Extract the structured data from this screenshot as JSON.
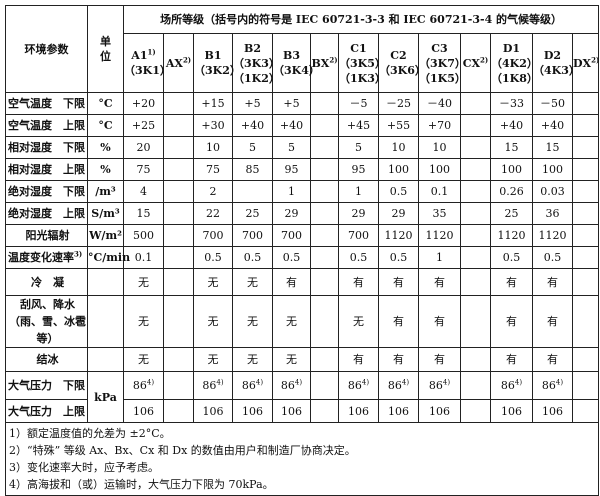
{
  "header": {
    "param_label": "环境参数",
    "unit_label": "单位",
    "group_title": "场所等级（括号内的符号是 IEC 60721-3-3 和 IEC 60721-3-4 的气候等级）",
    "classes": [
      {
        "name": "A1",
        "sup": "1)",
        "codes": [
          "（3K1）"
        ]
      },
      {
        "name": "AX",
        "sup": "2)",
        "codes": []
      },
      {
        "name": "B1",
        "sup": "",
        "codes": [
          "（3K2）"
        ]
      },
      {
        "name": "B2",
        "sup": "",
        "codes": [
          "（3K3）",
          "（1K2）"
        ]
      },
      {
        "name": "B3",
        "sup": "",
        "codes": [
          "（3K4）"
        ]
      },
      {
        "name": "BX",
        "sup": "2)",
        "codes": []
      },
      {
        "name": "C1",
        "sup": "",
        "codes": [
          "（3K5）",
          "（1K3）"
        ]
      },
      {
        "name": "C2",
        "sup": "",
        "codes": [
          "（3K6）"
        ]
      },
      {
        "name": "C3",
        "sup": "",
        "codes": [
          "（3K7）",
          "（1K5）"
        ]
      },
      {
        "name": "CX",
        "sup": "2)",
        "codes": []
      },
      {
        "name": "D1",
        "sup": "",
        "codes": [
          "（4K2）",
          "（1K8）"
        ]
      },
      {
        "name": "D2",
        "sup": "",
        "codes": [
          "（4K3）"
        ]
      },
      {
        "name": "DX",
        "sup": "2)",
        "codes": []
      }
    ]
  },
  "rows": [
    {
      "label": "空气温度　下限",
      "unit": "°C",
      "values": [
        "+20",
        "",
        "+15",
        "+5",
        "+5",
        "",
        "－5",
        "－25",
        "－40",
        "",
        "－33",
        "－50",
        ""
      ]
    },
    {
      "label": "空气温度　上限",
      "unit": "°C",
      "values": [
        "+25",
        "",
        "+30",
        "+40",
        "+40",
        "",
        "+45",
        "+55",
        "+70",
        "",
        "+40",
        "+40",
        ""
      ]
    },
    {
      "label": "相对湿度　下限",
      "unit": "%",
      "values": [
        "20",
        "",
        "10",
        "5",
        "5",
        "",
        "5",
        "10",
        "10",
        "",
        "15",
        "15",
        ""
      ]
    },
    {
      "label": "相对湿度　上限",
      "unit": "%",
      "values": [
        "75",
        "",
        "75",
        "85",
        "95",
        "",
        "95",
        "100",
        "100",
        "",
        "100",
        "100",
        ""
      ]
    },
    {
      "label": "绝对湿度　下限",
      "unit": "/m³",
      "values": [
        "4",
        "",
        "2",
        "",
        "1",
        "",
        "1",
        "0.5",
        "0.1",
        "",
        "0.26",
        "0.03",
        ""
      ]
    },
    {
      "label": "绝对湿度　上限",
      "unit": "S/m³",
      "values": [
        "15",
        "",
        "22",
        "25",
        "29",
        "",
        "29",
        "29",
        "35",
        "",
        "25",
        "36",
        ""
      ]
    },
    {
      "label": "阳光辐射",
      "center": true,
      "unit": "W/m²",
      "values": [
        "500",
        "",
        "700",
        "700",
        "700",
        "",
        "700",
        "1120",
        "1120",
        "",
        "1120",
        "1120",
        ""
      ]
    },
    {
      "label": "温度变化速率",
      "sup": "3)",
      "unit": "°C/min",
      "values": [
        "0.1",
        "",
        "0.5",
        "0.5",
        "0.5",
        "",
        "0.5",
        "0.5",
        "1",
        "",
        "0.5",
        "0.5",
        ""
      ]
    },
    {
      "label": "冷　凝",
      "center": true,
      "unit": "",
      "values": [
        "无",
        "",
        "无",
        "无",
        "有",
        "",
        "有",
        "有",
        "有",
        "",
        "有",
        "有",
        ""
      ]
    },
    {
      "label": "刮风、降水（雨、雪、冰雹等）",
      "center": true,
      "wrap": true,
      "unit": "",
      "values": [
        "无",
        "",
        "无",
        "无",
        "无",
        "",
        "无",
        "有",
        "有",
        "",
        "有",
        "有",
        ""
      ]
    },
    {
      "label": "结冰",
      "center": true,
      "unit": "",
      "values": [
        "无",
        "",
        "无",
        "无",
        "无",
        "",
        "有",
        "有",
        "有",
        "",
        "有",
        "有",
        ""
      ]
    },
    {
      "label": "大气压力　下限",
      "unit": "kPa",
      "unit_rowspan": 2,
      "values": [
        "86",
        "",
        "86",
        "86",
        "86",
        "",
        "86",
        "86",
        "86",
        "",
        "86",
        "86",
        ""
      ],
      "value_sup": "4)"
    },
    {
      "label": "大气压力　上限",
      "unit_skip": true,
      "values": [
        "106",
        "",
        "106",
        "106",
        "106",
        "",
        "106",
        "106",
        "106",
        "",
        "106",
        "106",
        ""
      ]
    }
  ],
  "notes": [
    "1）额定温度值的允差为 ±2°C。",
    "2）“特殊” 等级 Ax、Bx、Cx 和 Dx 的数值由用户和制造厂协商决定。",
    "3）变化速率大时，应予考虑。",
    "4）高海拔和（或）运输时，大气压力下限为 70kPa。"
  ]
}
